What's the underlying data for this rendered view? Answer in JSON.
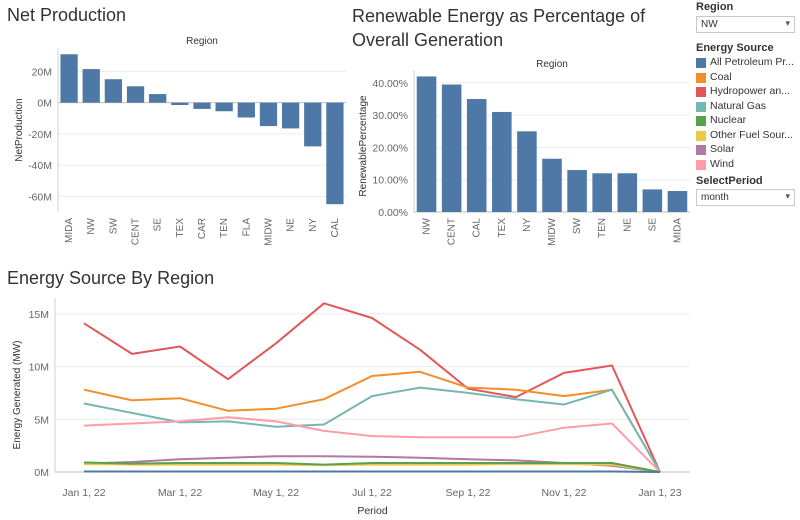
{
  "titles": {
    "net_production": "Net Production",
    "renewable": "Renewable Energy as Percentage of Overall Generation",
    "energy_source": "Energy Source By Region"
  },
  "filters": {
    "region_label": "Region",
    "region_value": "NW",
    "energy_source_label": "Energy Source",
    "period_label": "SelectPeriod",
    "period_value": "month"
  },
  "legend": [
    {
      "label": "All Petroleum Pr...",
      "color": "#4e79a7"
    },
    {
      "label": "Coal",
      "color": "#f28e2b"
    },
    {
      "label": "Hydropower an...",
      "color": "#e15759"
    },
    {
      "label": "Natural Gas",
      "color": "#76b7b2"
    },
    {
      "label": "Nuclear",
      "color": "#59a14f"
    },
    {
      "label": "Other Fuel Sour...",
      "color": "#edc948"
    },
    {
      "label": "Solar",
      "color": "#b07aa1"
    },
    {
      "label": "Wind",
      "color": "#ff9da7"
    }
  ],
  "chart_data": [
    {
      "type": "bar",
      "title": "Net Production",
      "header": "Region",
      "ylabel": "NetProduction",
      "categories": [
        "MIDA",
        "NW",
        "SW",
        "CENT",
        "SE",
        "TEX",
        "CAR",
        "TEN",
        "FLA",
        "MIDW",
        "NE",
        "NY",
        "CAL"
      ],
      "values": [
        31,
        21.5,
        15,
        10.5,
        5.5,
        -1.5,
        -4,
        -5.5,
        -9.5,
        -15,
        -16.5,
        -28,
        -65
      ],
      "ylim": [
        -70,
        35
      ],
      "yticks": [
        20,
        0,
        -20,
        -40,
        -60
      ],
      "ytick_labels": [
        "20M",
        "0M",
        "-20M",
        "-40M",
        "-60M"
      ],
      "color": "#4e79a7"
    },
    {
      "type": "bar",
      "title": "Renewable Energy as Percentage of Overall Generation",
      "header": "Region",
      "ylabel": "RenewablePercentage",
      "categories": [
        "NW",
        "CENT",
        "CAL",
        "TEX",
        "NY",
        "MIDW",
        "SW",
        "TEN",
        "NE",
        "SE",
        "MIDA"
      ],
      "values": [
        42,
        39.5,
        35,
        31,
        25,
        16.5,
        13,
        12,
        12,
        7,
        6.5
      ],
      "ylim": [
        0,
        44
      ],
      "yticks": [
        0,
        10,
        20,
        30,
        40
      ],
      "ytick_labels": [
        "0.00%",
        "10.00%",
        "20.00%",
        "30.00%",
        "40.00%"
      ],
      "color": "#4e79a7"
    },
    {
      "type": "line",
      "title": "Energy Source By Region",
      "xlabel": "Period",
      "ylabel": "Energy Generated (MW)",
      "x": [
        "2022-01",
        "2022-02",
        "2022-03",
        "2022-04",
        "2022-05",
        "2022-06",
        "2022-07",
        "2022-08",
        "2022-09",
        "2022-10",
        "2022-11",
        "2022-12",
        "2023-01"
      ],
      "xticks": [
        "2022-01",
        "2022-03",
        "2022-05",
        "2022-07",
        "2022-09",
        "2022-11",
        "2023-01"
      ],
      "xtick_labels": [
        "Jan 1, 22",
        "Mar 1, 22",
        "May 1, 22",
        "Jul 1, 22",
        "Sep 1, 22",
        "Nov 1, 22",
        "Jan 1, 23"
      ],
      "ylim": [
        0,
        16.5
      ],
      "yticks": [
        0,
        5,
        10,
        15
      ],
      "ytick_labels": [
        "0M",
        "5M",
        "10M",
        "15M"
      ],
      "series": [
        {
          "name": "Hydropower an...",
          "color": "#e15759",
          "values": [
            14.1,
            11.2,
            11.9,
            8.8,
            12.2,
            16,
            14.6,
            11.6,
            7.9,
            7.1,
            9.4,
            10.1,
            0
          ]
        },
        {
          "name": "Coal",
          "color": "#f28e2b",
          "values": [
            7.8,
            6.8,
            7.0,
            5.8,
            6.0,
            6.9,
            9.1,
            9.5,
            8.0,
            7.8,
            7.2,
            7.8,
            0
          ]
        },
        {
          "name": "Natural Gas",
          "color": "#76b7b2",
          "values": [
            6.5,
            5.6,
            4.7,
            4.8,
            4.3,
            4.5,
            7.2,
            8.0,
            7.5,
            6.9,
            6.4,
            7.8,
            0
          ]
        },
        {
          "name": "Wind",
          "color": "#ff9da7",
          "values": [
            4.4,
            4.6,
            4.8,
            5.2,
            4.8,
            3.9,
            3.4,
            3.3,
            3.3,
            3.3,
            4.2,
            4.6,
            0
          ]
        },
        {
          "name": "Solar",
          "color": "#b07aa1",
          "values": [
            0.8,
            0.95,
            1.2,
            1.35,
            1.5,
            1.5,
            1.45,
            1.35,
            1.2,
            1.1,
            0.85,
            0.6,
            0
          ]
        },
        {
          "name": "Other Fuel Sour...",
          "color": "#edc948",
          "values": [
            0.75,
            0.7,
            0.7,
            0.7,
            0.7,
            0.65,
            0.7,
            0.7,
            0.7,
            0.75,
            0.75,
            0.7,
            0
          ]
        },
        {
          "name": "Nuclear",
          "color": "#59a14f",
          "values": [
            0.9,
            0.8,
            0.85,
            0.85,
            0.85,
            0.7,
            0.85,
            0.85,
            0.85,
            0.85,
            0.85,
            0.85,
            0
          ]
        },
        {
          "name": "All Petroleum Pr...",
          "color": "#4e79a7",
          "values": [
            0.05,
            0.05,
            0.05,
            0.05,
            0.05,
            0.05,
            0.05,
            0.05,
            0.05,
            0.05,
            0.05,
            0.05,
            0
          ]
        }
      ]
    }
  ]
}
